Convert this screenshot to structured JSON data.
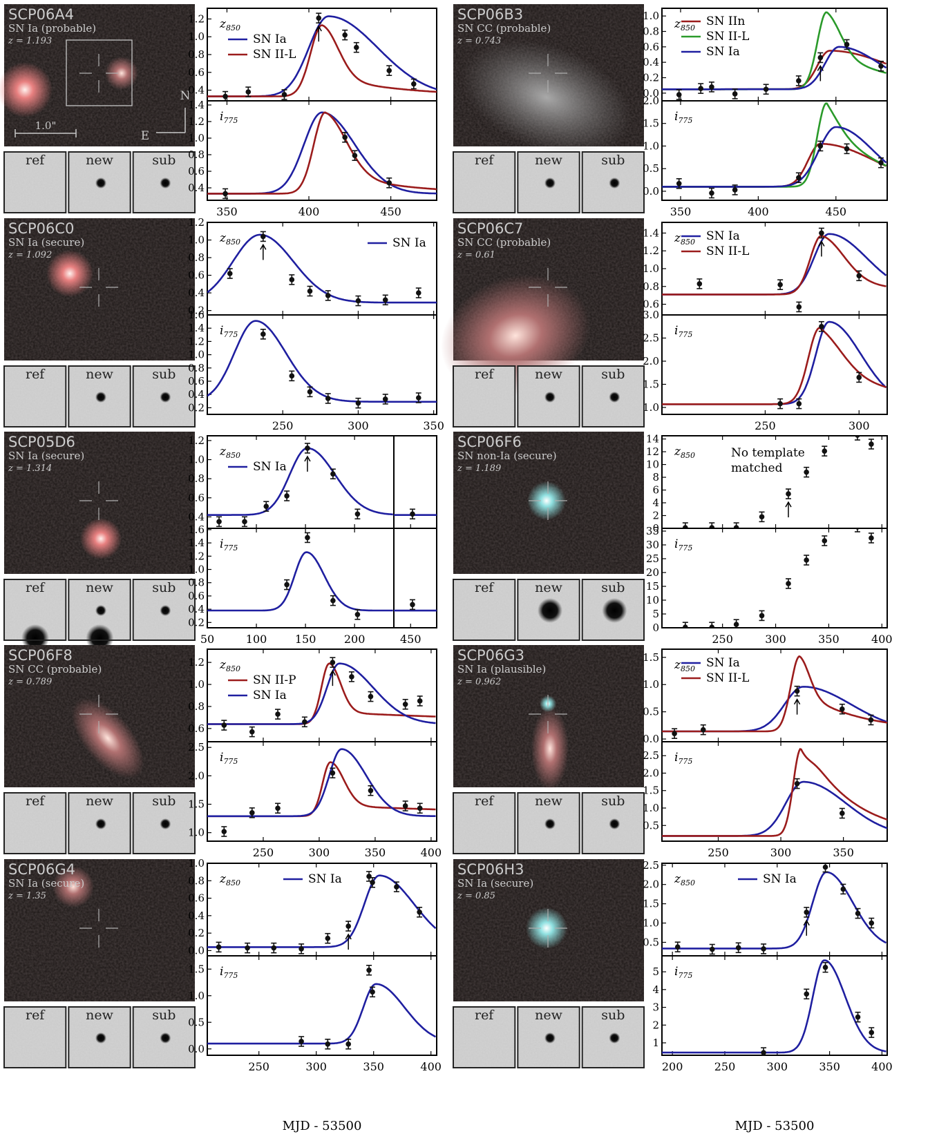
{
  "figure": {
    "x_axis_label": "MJD - 53500",
    "stamp_labels": {
      "ref": "ref",
      "new": "new",
      "sub": "sub"
    },
    "compass": {
      "north": "N",
      "east": "E"
    },
    "scale_bar": "1.0\"",
    "colors": {
      "sn_ia": "#1f1fa0",
      "sn_ii": "#9b1c1c",
      "sn_iil_green": "#2a9a2a",
      "points": "#111111",
      "label_text": "#cccccc"
    }
  },
  "panels": [
    {
      "id": "SCP06A4",
      "type": "SN Ia (probable)",
      "z": "z = 1.193",
      "show_box": true,
      "x_ticks": [
        "350",
        "400",
        "450"
      ],
      "z850": {
        "band": "z850",
        "y_ticks": [
          "0.4",
          "0.6",
          "0.8",
          "1.0",
          "1.2"
        ],
        "ylim": [
          0.28,
          1.32
        ],
        "legend": [
          "SN Ia",
          "SN II-L"
        ],
        "points": [
          [
            349,
            0.33
          ],
          [
            363,
            0.38
          ],
          [
            385,
            0.35
          ],
          [
            406,
            1.21
          ],
          [
            422,
            1.02
          ],
          [
            429,
            0.88
          ],
          [
            449,
            0.62
          ],
          [
            464,
            0.47
          ]
        ],
        "arrow_x": 406
      },
      "i775": {
        "band": "i775",
        "y_ticks": [
          "0.4",
          "0.6",
          "0.8",
          "1.0",
          "1.2",
          "1.4"
        ],
        "ylim": [
          0.25,
          1.45
        ],
        "points": [
          [
            349,
            0.33
          ],
          [
            422,
            1.01
          ],
          [
            428,
            0.79
          ],
          [
            449,
            0.46
          ]
        ]
      }
    },
    {
      "id": "SCP06B3",
      "type": "SN CC (probable)",
      "z": "z = 0.743",
      "x_ticks": [
        "350",
        "400",
        "450"
      ],
      "z850": {
        "band": "z850",
        "y_ticks": [
          "0.0",
          "0.2",
          "0.4",
          "0.6",
          "0.8",
          "1.0"
        ],
        "ylim": [
          -0.1,
          1.1
        ],
        "legend": [
          "SN IIn",
          "SN II-L",
          "SN Ia"
        ],
        "points": [
          [
            349,
            -0.02
          ],
          [
            363,
            0.06
          ],
          [
            370,
            0.08
          ],
          [
            385,
            -0.01
          ],
          [
            405,
            0.05
          ],
          [
            426,
            0.16
          ],
          [
            440,
            0.46
          ],
          [
            457,
            0.63
          ],
          [
            479,
            0.35
          ]
        ],
        "arrow_x": 440
      },
      "i775": {
        "band": "i775",
        "y_ticks": [
          "0.0",
          "0.5",
          "1.0",
          "1.5",
          "2.0"
        ],
        "ylim": [
          -0.2,
          2.0
        ],
        "points": [
          [
            349,
            0.17
          ],
          [
            370,
            -0.04
          ],
          [
            385,
            0.03
          ],
          [
            426,
            0.3
          ],
          [
            440,
            1.0
          ],
          [
            457,
            0.94
          ],
          [
            479,
            0.63
          ]
        ]
      }
    },
    {
      "id": "SCP06C0",
      "type": "SN Ia (secure)",
      "z": "z = 1.092",
      "x_ticks": [
        "250",
        "300",
        "350"
      ],
      "z850": {
        "band": "z850",
        "y_ticks": [
          "0.2",
          "0.4",
          "0.6",
          "0.8",
          "1.0",
          "1.2"
        ],
        "ylim": [
          0.15,
          1.2
        ],
        "legend": [
          "SN Ia"
        ],
        "legend_right": true,
        "points": [
          [
            215,
            0.62
          ],
          [
            237,
            1.04
          ],
          [
            256,
            0.55
          ],
          [
            268,
            0.42
          ],
          [
            280,
            0.37
          ],
          [
            300,
            0.31
          ],
          [
            318,
            0.32
          ],
          [
            340,
            0.4
          ]
        ],
        "arrow_x": 237
      },
      "i775": {
        "band": "i775",
        "y_ticks": [
          "0.2",
          "0.4",
          "0.6",
          "0.8",
          "1.0",
          "1.2",
          "1.4",
          "1.6"
        ],
        "ylim": [
          0.1,
          1.6
        ],
        "points": [
          [
            237,
            1.31
          ],
          [
            256,
            0.68
          ],
          [
            268,
            0.44
          ],
          [
            280,
            0.34
          ],
          [
            300,
            0.27
          ],
          [
            318,
            0.33
          ],
          [
            340,
            0.35
          ]
        ]
      }
    },
    {
      "id": "SCP06C7",
      "type": "SN CC (probable)",
      "z": "z = 0.61",
      "x_ticks": [
        "250",
        "300"
      ],
      "z850": {
        "band": "z850",
        "y_ticks": [
          "0.6",
          "0.8",
          "1.0",
          "1.2",
          "1.4"
        ],
        "ylim": [
          0.48,
          1.52
        ],
        "legend": [
          "SN Ia",
          "SN II-L"
        ],
        "points": [
          [
            215,
            0.83
          ],
          [
            258,
            0.82
          ],
          [
            268,
            0.57
          ],
          [
            280,
            1.4
          ],
          [
            300,
            0.92
          ]
        ],
        "arrow_x": 280
      },
      "i775": {
        "band": "i775",
        "y_ticks": [
          "1.0",
          "1.5",
          "2.0",
          "2.5",
          "3.0"
        ],
        "ylim": [
          0.85,
          3.0
        ],
        "points": [
          [
            258,
            1.08
          ],
          [
            268,
            1.08
          ],
          [
            280,
            2.75
          ],
          [
            300,
            1.65
          ]
        ]
      }
    },
    {
      "id": "SCP05D6",
      "type": "SN Ia (secure)",
      "z": "z = 1.314",
      "x_ticks": [
        "50",
        "100",
        "150",
        "200"
      ],
      "x_ticks_right": [
        "450"
      ],
      "z850": {
        "band": "z850",
        "y_ticks": [
          "0.4",
          "0.6",
          "0.8",
          "1.0",
          "1.2"
        ],
        "ylim": [
          0.28,
          1.25
        ],
        "legend": [
          "SN Ia"
        ],
        "points": [
          [
            62,
            0.35
          ],
          [
            88,
            0.35
          ],
          [
            110,
            0.51
          ],
          [
            131,
            0.62
          ],
          [
            152,
            1.12
          ],
          [
            178,
            0.85
          ],
          [
            203,
            0.43
          ]
        ],
        "points_right": [
          [
            452,
            0.43
          ]
        ],
        "arrow_x": 152
      },
      "i775": {
        "band": "i775",
        "y_ticks": [
          "0.2",
          "0.4",
          "0.6",
          "0.8",
          "1.0",
          "1.2",
          "1.4",
          "1.6"
        ],
        "ylim": [
          0.12,
          1.62
        ],
        "points": [
          [
            131,
            0.77
          ],
          [
            152,
            1.48
          ],
          [
            178,
            0.53
          ],
          [
            203,
            0.32
          ]
        ],
        "points_right": [
          [
            452,
            0.47
          ]
        ]
      }
    },
    {
      "id": "SCP06F6",
      "type": "SN non-Ia (secure)",
      "z": "z = 1.189",
      "x_ticks": [
        "250",
        "300",
        "350",
        "400"
      ],
      "z850": {
        "band": "z850",
        "y_ticks": [
          "0",
          "2",
          "4",
          "6",
          "8",
          "10",
          "12",
          "14"
        ],
        "ylim": [
          0,
          14.5
        ],
        "note": "No template matched",
        "points": [
          [
            215,
            0.1
          ],
          [
            240,
            0.1
          ],
          [
            263,
            0.1
          ],
          [
            287,
            1.8
          ],
          [
            312,
            5.4
          ],
          [
            329,
            8.8
          ],
          [
            346,
            12.1
          ],
          [
            377,
            14.6
          ],
          [
            390,
            13.2
          ]
        ],
        "arrow_x": 312
      },
      "i775": {
        "band": "i775",
        "y_ticks": [
          "0",
          "5",
          "10",
          "15",
          "20",
          "25",
          "30",
          "35"
        ],
        "ylim": [
          0,
          36
        ],
        "points": [
          [
            215,
            0.2
          ],
          [
            240,
            0.2
          ],
          [
            263,
            1.2
          ],
          [
            287,
            4.4
          ],
          [
            312,
            16.0
          ],
          [
            329,
            24.5
          ],
          [
            346,
            31.5
          ],
          [
            377,
            36.5
          ],
          [
            390,
            32.5
          ]
        ]
      }
    },
    {
      "id": "SCP06F8",
      "type": "SN CC (probable)",
      "z": "z = 0.789",
      "x_ticks": [
        "250",
        "300",
        "350",
        "400"
      ],
      "z850": {
        "band": "z850",
        "y_ticks": [
          "0.6",
          "0.8",
          "1.0",
          "1.2"
        ],
        "ylim": [
          0.48,
          1.32
        ],
        "legend": [
          "SN II-P",
          "SN Ia"
        ],
        "points": [
          [
            215,
            0.63
          ],
          [
            240,
            0.57
          ],
          [
            263,
            0.73
          ],
          [
            287,
            0.66
          ],
          [
            312,
            1.2
          ],
          [
            329,
            1.07
          ],
          [
            346,
            0.89
          ],
          [
            377,
            0.82
          ],
          [
            390,
            0.85
          ]
        ],
        "arrow_x": 312
      },
      "i775": {
        "band": "i775",
        "y_ticks": [
          "1.0",
          "1.5",
          "2.0",
          "2.5"
        ],
        "ylim": [
          0.85,
          2.6
        ],
        "points": [
          [
            215,
            1.02
          ],
          [
            240,
            1.35
          ],
          [
            263,
            1.43
          ],
          [
            312,
            2.05
          ],
          [
            346,
            1.74
          ],
          [
            377,
            1.47
          ],
          [
            390,
            1.43
          ]
        ]
      }
    },
    {
      "id": "SCP06G3",
      "type": "SN Ia (plausible)",
      "z": "z = 0.962",
      "x_ticks": [
        "250",
        "300",
        "350"
      ],
      "z850": {
        "band": "z850",
        "y_ticks": [
          "0.0",
          "0.5",
          "1.0",
          "1.5"
        ],
        "ylim": [
          -0.05,
          1.65
        ],
        "legend": [
          "SN Ia",
          "SN II-L"
        ],
        "points": [
          [
            215,
            0.1
          ],
          [
            238,
            0.17
          ],
          [
            313,
            0.88
          ],
          [
            349,
            0.55
          ],
          [
            372,
            0.35
          ]
        ],
        "arrow_x": 313
      },
      "i775": {
        "band": "i775",
        "y_ticks": [
          "0.5",
          "1.0",
          "1.5",
          "2.0",
          "2.5"
        ],
        "ylim": [
          0.05,
          2.9
        ],
        "points": [
          [
            313,
            1.7
          ],
          [
            349,
            0.85
          ]
        ]
      }
    },
    {
      "id": "SCP06G4",
      "type": "SN Ia (secure)",
      "z": "z = 1.35",
      "x_ticks": [
        "250",
        "300",
        "350",
        "400"
      ],
      "z850": {
        "band": "z850",
        "y_ticks": [
          "0.0",
          "0.2",
          "0.4",
          "0.6",
          "0.8",
          "1.0"
        ],
        "ylim": [
          -0.06,
          1.0
        ],
        "legend": [
          "SN Ia"
        ],
        "legend_wide": true,
        "points": [
          [
            215,
            0.04
          ],
          [
            240,
            0.03
          ],
          [
            263,
            0.03
          ],
          [
            287,
            0.02
          ],
          [
            310,
            0.14
          ],
          [
            328,
            0.28
          ],
          [
            346,
            0.85
          ],
          [
            349,
            0.78
          ],
          [
            370,
            0.73
          ],
          [
            390,
            0.44
          ]
        ],
        "arrow_x": 328
      },
      "i775": {
        "band": "i775",
        "y_ticks": [
          "0.0",
          "0.5",
          "1.0",
          "1.5"
        ],
        "ylim": [
          -0.12,
          1.75
        ],
        "points": [
          [
            287,
            0.14
          ],
          [
            310,
            0.09
          ],
          [
            328,
            0.09
          ],
          [
            346,
            1.48
          ],
          [
            349,
            1.07
          ]
        ]
      }
    },
    {
      "id": "SCP06H3",
      "type": "SN Ia (secure)",
      "z": "z = 0.85",
      "x_ticks": [
        "200",
        "250",
        "300",
        "350",
        "400"
      ],
      "z850": {
        "band": "z850",
        "y_ticks": [
          "0.5",
          "1.0",
          "1.5",
          "2.0",
          "2.5"
        ],
        "ylim": [
          0.15,
          2.55
        ],
        "legend": [
          "SN Ia"
        ],
        "legend_wide": true,
        "points": [
          [
            205,
            0.38
          ],
          [
            238,
            0.32
          ],
          [
            263,
            0.36
          ],
          [
            287,
            0.33
          ],
          [
            328,
            1.28
          ],
          [
            346,
            2.45
          ],
          [
            363,
            1.88
          ],
          [
            377,
            1.25
          ],
          [
            390,
            1.0
          ]
        ],
        "arrow_x": 328
      },
      "i775": {
        "band": "i775",
        "y_ticks": [
          "1",
          "2",
          "3",
          "4",
          "5"
        ],
        "ylim": [
          0.3,
          5.9
        ],
        "points": [
          [
            287,
            0.45
          ],
          [
            328,
            3.75
          ],
          [
            346,
            5.25
          ],
          [
            377,
            2.45
          ],
          [
            390,
            1.58
          ]
        ]
      }
    }
  ]
}
